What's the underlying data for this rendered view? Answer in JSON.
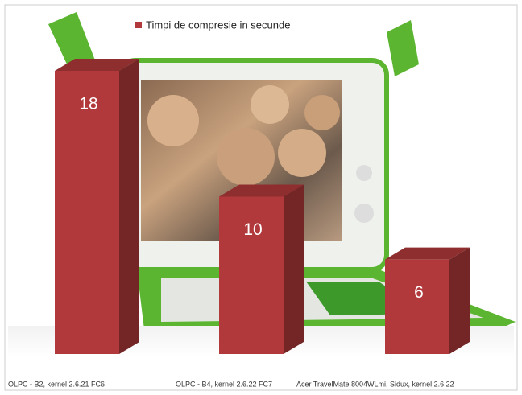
{
  "chart_data": {
    "type": "bar3d",
    "categories": [
      "OLPC - B2, kernel 2.6.21 FC6",
      "OLPC - B4, kernel 2.6.22 FC7",
      "Acer TravelMate 8004WLmi, Sidux, kernel 2.6.22"
    ],
    "series": [
      {
        "name": "Timpi de compresie in secunde",
        "color": "#b2393b",
        "values": [
          18,
          10,
          6
        ]
      }
    ],
    "legend": "top"
  }
}
